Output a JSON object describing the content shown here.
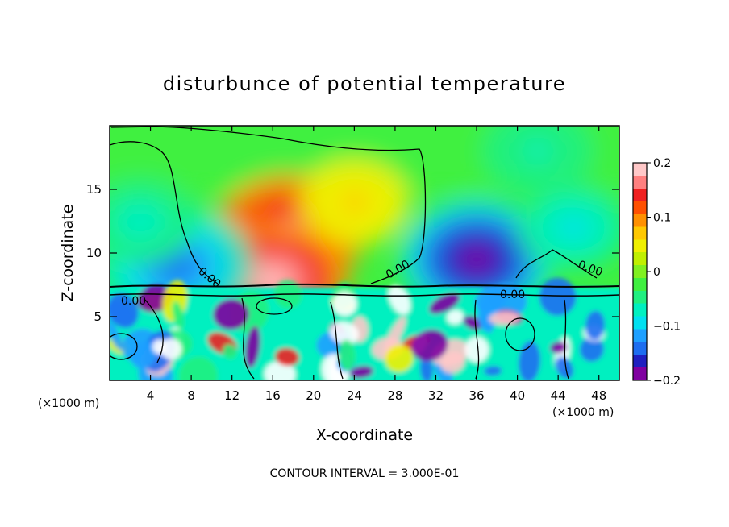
{
  "chart_data": {
    "type": "heatmap",
    "title": "disturbunce of potential temperature",
    "xlabel": "X-coordinate",
    "ylabel": "Z-coordinate",
    "x_unit_left": "(×1000 m)",
    "x_unit_right": "(×1000 m)",
    "footnote": "CONTOUR INTERVAL = 3.000E-01",
    "xlim": [
      0,
      50
    ],
    "ylim": [
      0,
      20
    ],
    "x_ticks": [
      4,
      8,
      12,
      16,
      20,
      24,
      28,
      32,
      36,
      40,
      44,
      48
    ],
    "y_ticks": [
      5,
      10,
      15
    ],
    "colorbar": {
      "range": [
        -0.2,
        0.2
      ],
      "ticks": [
        0.2,
        0.1,
        0,
        -0.1,
        -0.2
      ],
      "tick_labels": [
        "0.2",
        "0.1",
        "0",
        "−0.1",
        "−0.2"
      ],
      "colors": [
        "#8000a0",
        "#2020c0",
        "#1e6ef0",
        "#1ea0ff",
        "#00e0f0",
        "#00f0c0",
        "#20f080",
        "#40f040",
        "#80f020",
        "#c0f000",
        "#f0f000",
        "#ffc800",
        "#ff9000",
        "#ff5000",
        "#f02020",
        "#ff8080",
        "#ffc8c8"
      ]
    },
    "contour_label": "0.00",
    "anomalies": [
      {
        "x": 17.5,
        "z": 11.5,
        "value": 0.18
      },
      {
        "x": 16.0,
        "z": 7.8,
        "value": 0.2
      },
      {
        "x": 24.0,
        "z": 14.0,
        "value": 0.07
      },
      {
        "x": 6.5,
        "z": 9.0,
        "value": -0.15
      },
      {
        "x": 36.0,
        "z": 9.5,
        "value": -0.2
      },
      {
        "x": 3.0,
        "z": 12.5,
        "value": -0.08
      },
      {
        "x": 45.5,
        "z": 12.0,
        "value": -0.09
      },
      {
        "x": 42.0,
        "z": 18.0,
        "value": -0.07
      }
    ]
  }
}
